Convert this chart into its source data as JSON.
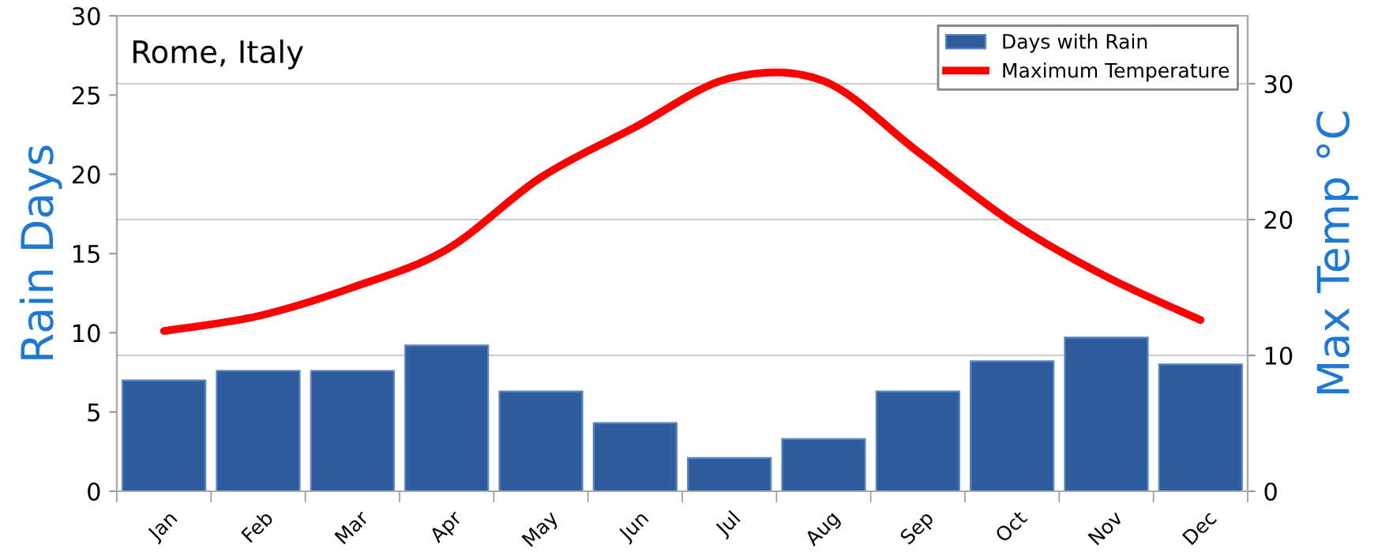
{
  "chart_data": {
    "type": "bar",
    "title": "Rome, Italy",
    "ylabel": "Rain Days",
    "y2label": "Max Temp °C",
    "categories": [
      "Jan",
      "Feb",
      "Mar",
      "Apr",
      "May",
      "Jun",
      "Jul",
      "Aug",
      "Sep",
      "Oct",
      "Nov",
      "Dec"
    ],
    "series": [
      {
        "name": "Days with Rain",
        "color": "#2f5c9e",
        "values": [
          7.0,
          7.6,
          7.6,
          9.2,
          6.3,
          4.3,
          2.1,
          3.3,
          6.3,
          8.2,
          9.7,
          8.0
        ]
      },
      {
        "name": "Maximum Temperature",
        "type": "line",
        "axis": "y2",
        "color": "#ff0000",
        "values": [
          11.8,
          12.9,
          15.0,
          17.8,
          23.1,
          26.8,
          30.4,
          30.2,
          25.0,
          19.8,
          15.8,
          12.6
        ]
      }
    ],
    "ylim": [
      0,
      30
    ],
    "yticks": [
      0,
      5,
      10,
      15,
      20,
      25,
      30
    ],
    "y2lim": [
      0,
      35
    ],
    "y2ticks": [
      0,
      10,
      20,
      30
    ],
    "grid": "y2",
    "legend": "top right",
    "marker": "none",
    "line_style": "solid"
  }
}
